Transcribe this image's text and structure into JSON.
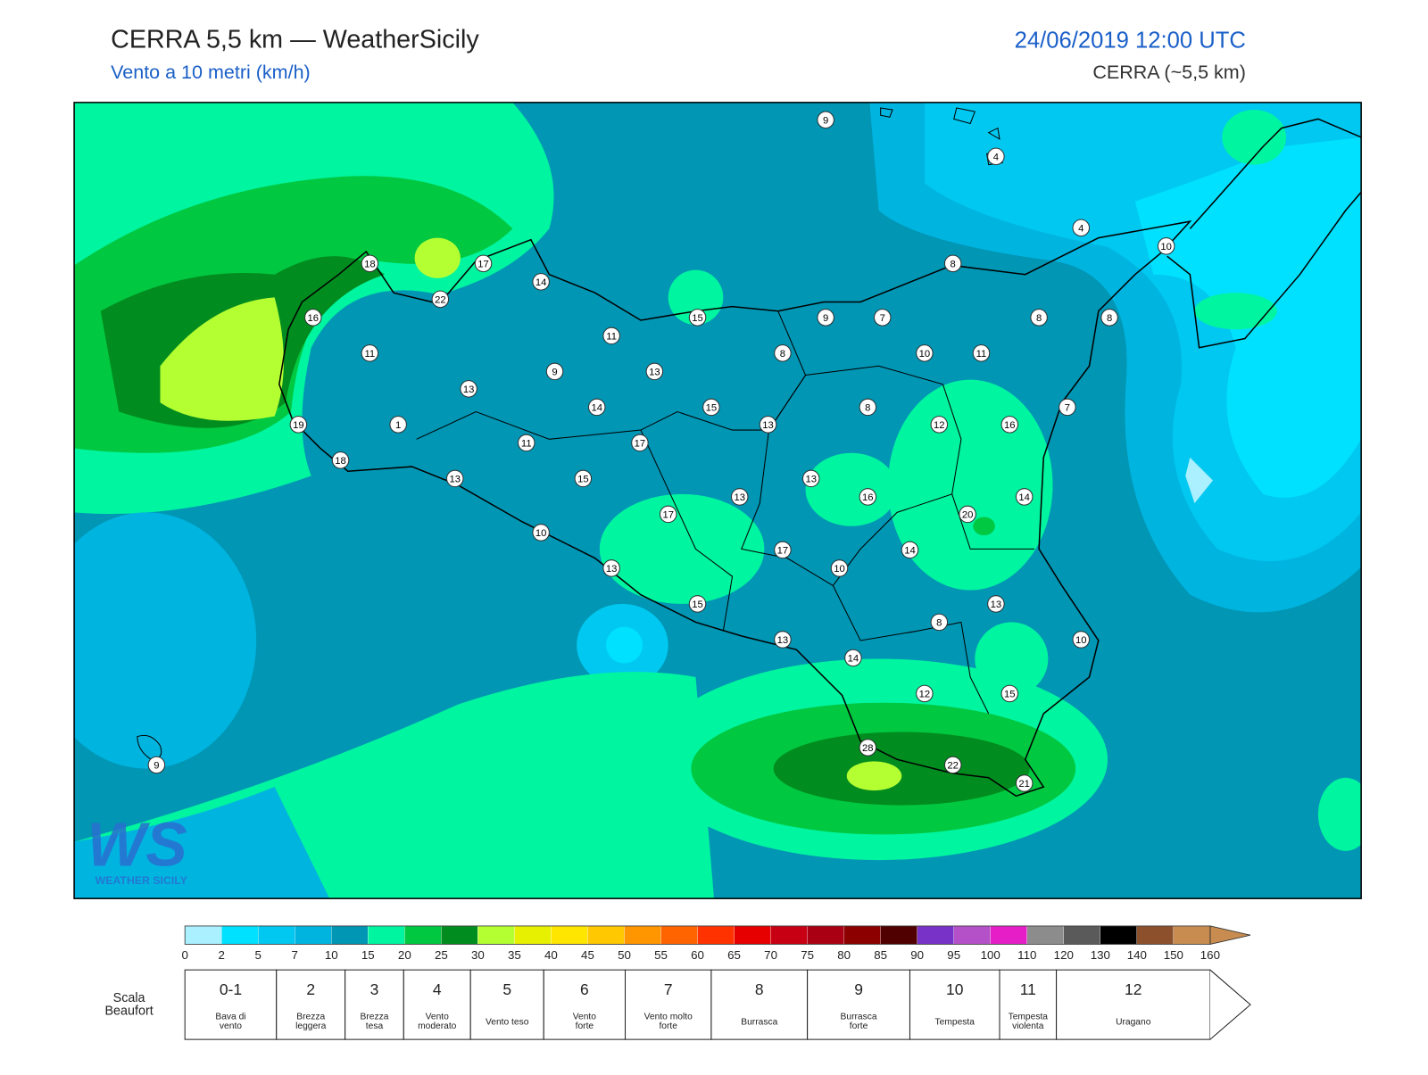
{
  "header": {
    "title": "CERRA 5,5 km — WeatherSicily",
    "subtitle": "Vento a 10 metri (km/h)",
    "datetime": "24/06/2019 12:00 UTC",
    "model": "CERRA (~5,5 km)"
  },
  "logo": {
    "mark": "WS",
    "name": "WEATHER SICILY"
  },
  "stations": [
    9,
    4,
    4,
    10,
    8,
    18,
    17,
    14,
    22,
    16,
    15,
    9,
    7,
    8,
    8,
    11,
    11,
    8,
    10,
    11,
    9,
    13,
    13,
    14,
    15,
    8,
    7,
    1,
    19,
    13,
    12,
    16,
    11,
    17,
    18,
    13,
    15,
    13,
    13,
    16,
    14,
    17,
    20,
    10,
    17,
    14,
    10,
    13,
    15,
    13,
    8,
    13,
    10,
    14,
    12,
    15,
    28,
    22,
    21,
    9
  ],
  "colorbar": {
    "ticks": [
      0,
      2,
      5,
      7,
      10,
      15,
      20,
      25,
      30,
      35,
      40,
      45,
      50,
      55,
      60,
      65,
      70,
      75,
      80,
      85,
      90,
      95,
      100,
      110,
      120,
      130,
      140,
      150,
      160
    ],
    "colors": [
      "#aaf0ff",
      "#00e0ff",
      "#00c8f0",
      "#00b4e0",
      "#0096b4",
      "#00f5a0",
      "#00c840",
      "#008c1e",
      "#b4ff32",
      "#e6f000",
      "#ffe600",
      "#ffc800",
      "#ff9600",
      "#ff6400",
      "#ff3200",
      "#e60000",
      "#c80014",
      "#aa0014",
      "#8c0000",
      "#500000",
      "#7832c8",
      "#b450c8",
      "#e61ec8",
      "#8c8c8c",
      "#5a5a5a",
      "#000000",
      "#8c502d",
      "#c88c50"
    ]
  },
  "beaufort": {
    "title": [
      "Scala",
      "Beaufort"
    ],
    "levels": [
      {
        "number": "0-1",
        "label": [
          "Bava di",
          "vento"
        ]
      },
      {
        "number": "2",
        "label": [
          "Brezza",
          "leggera"
        ]
      },
      {
        "number": "3",
        "label": [
          "Brezza",
          "tesa"
        ]
      },
      {
        "number": "4",
        "label": [
          "Vento",
          "moderato"
        ]
      },
      {
        "number": "5",
        "label": [
          "Vento teso"
        ]
      },
      {
        "number": "6",
        "label": [
          "Vento",
          "forte"
        ]
      },
      {
        "number": "7",
        "label": [
          "Vento molto",
          "forte"
        ]
      },
      {
        "number": "8",
        "label": [
          "Burrasca"
        ]
      },
      {
        "number": "9",
        "label": [
          "Burrasca",
          "forte"
        ]
      },
      {
        "number": "10",
        "label": [
          "Tempesta"
        ]
      },
      {
        "number": "11",
        "label": [
          "Tempesta",
          "violenta"
        ]
      },
      {
        "number": "12",
        "label": [
          "Uragano"
        ]
      }
    ]
  }
}
